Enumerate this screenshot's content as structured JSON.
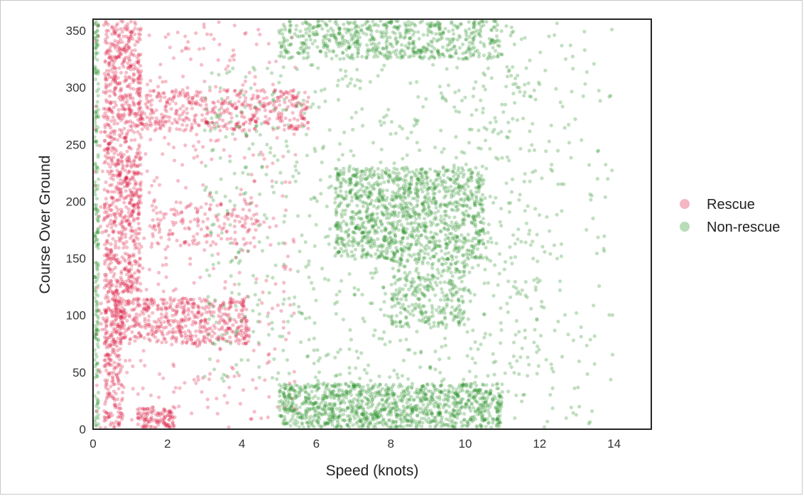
{
  "chart_data": {
    "type": "scatter",
    "title": "",
    "xlabel": "Speed (knots)",
    "ylabel": "Course Over Ground",
    "xlim": [
      0,
      15
    ],
    "ylim": [
      0,
      360
    ],
    "xticks": [
      "0",
      "2",
      "4",
      "6",
      "8",
      "10",
      "12",
      "14"
    ],
    "yticks": [
      "0",
      "50",
      "100",
      "150",
      "200",
      "250",
      "300",
      "350"
    ],
    "grid": false,
    "legend_position": "right",
    "series": [
      {
        "name": "Rescue",
        "color": "#dc143c",
        "legend_color": "#f4b6c2",
        "clusters": [
          {
            "x": [
              0.3,
              1.3
            ],
            "y": [
              120,
              360
            ],
            "n": 900
          },
          {
            "x": [
              0.3,
              0.8
            ],
            "y": [
              0,
              120
            ],
            "n": 250
          },
          {
            "x": [
              0.5,
              4.2
            ],
            "y": [
              75,
              115
            ],
            "n": 500
          },
          {
            "x": [
              1.2,
              5.8
            ],
            "y": [
              262,
              298
            ],
            "n": 420
          },
          {
            "x": [
              1.2,
              2.2
            ],
            "y": [
              0,
              20
            ],
            "n": 120
          },
          {
            "x": [
              1.5,
              4.5
            ],
            "y": [
              160,
              200
            ],
            "n": 150
          },
          {
            "x": [
              0,
              5.5
            ],
            "y": [
              0,
              360
            ],
            "n": 450
          }
        ]
      },
      {
        "name": "Non-rescue",
        "color": "#228b22",
        "legend_color": "#b8ddb8",
        "clusters": [
          {
            "x": [
              0,
              0.15
            ],
            "y": [
              0,
              360
            ],
            "n": 280
          },
          {
            "x": [
              5,
              11
            ],
            "y": [
              0,
              40
            ],
            "n": 1200
          },
          {
            "x": [
              6.5,
              10.5
            ],
            "y": [
              150,
              230
            ],
            "n": 1100
          },
          {
            "x": [
              5,
              11
            ],
            "y": [
              325,
              360
            ],
            "n": 650
          },
          {
            "x": [
              8,
              10
            ],
            "y": [
              90,
              150
            ],
            "n": 300
          },
          {
            "x": [
              3,
              12
            ],
            "y": [
              40,
              320
            ],
            "n": 800
          },
          {
            "x": [
              11,
              14
            ],
            "y": [
              0,
              360
            ],
            "n": 180
          }
        ]
      }
    ]
  }
}
